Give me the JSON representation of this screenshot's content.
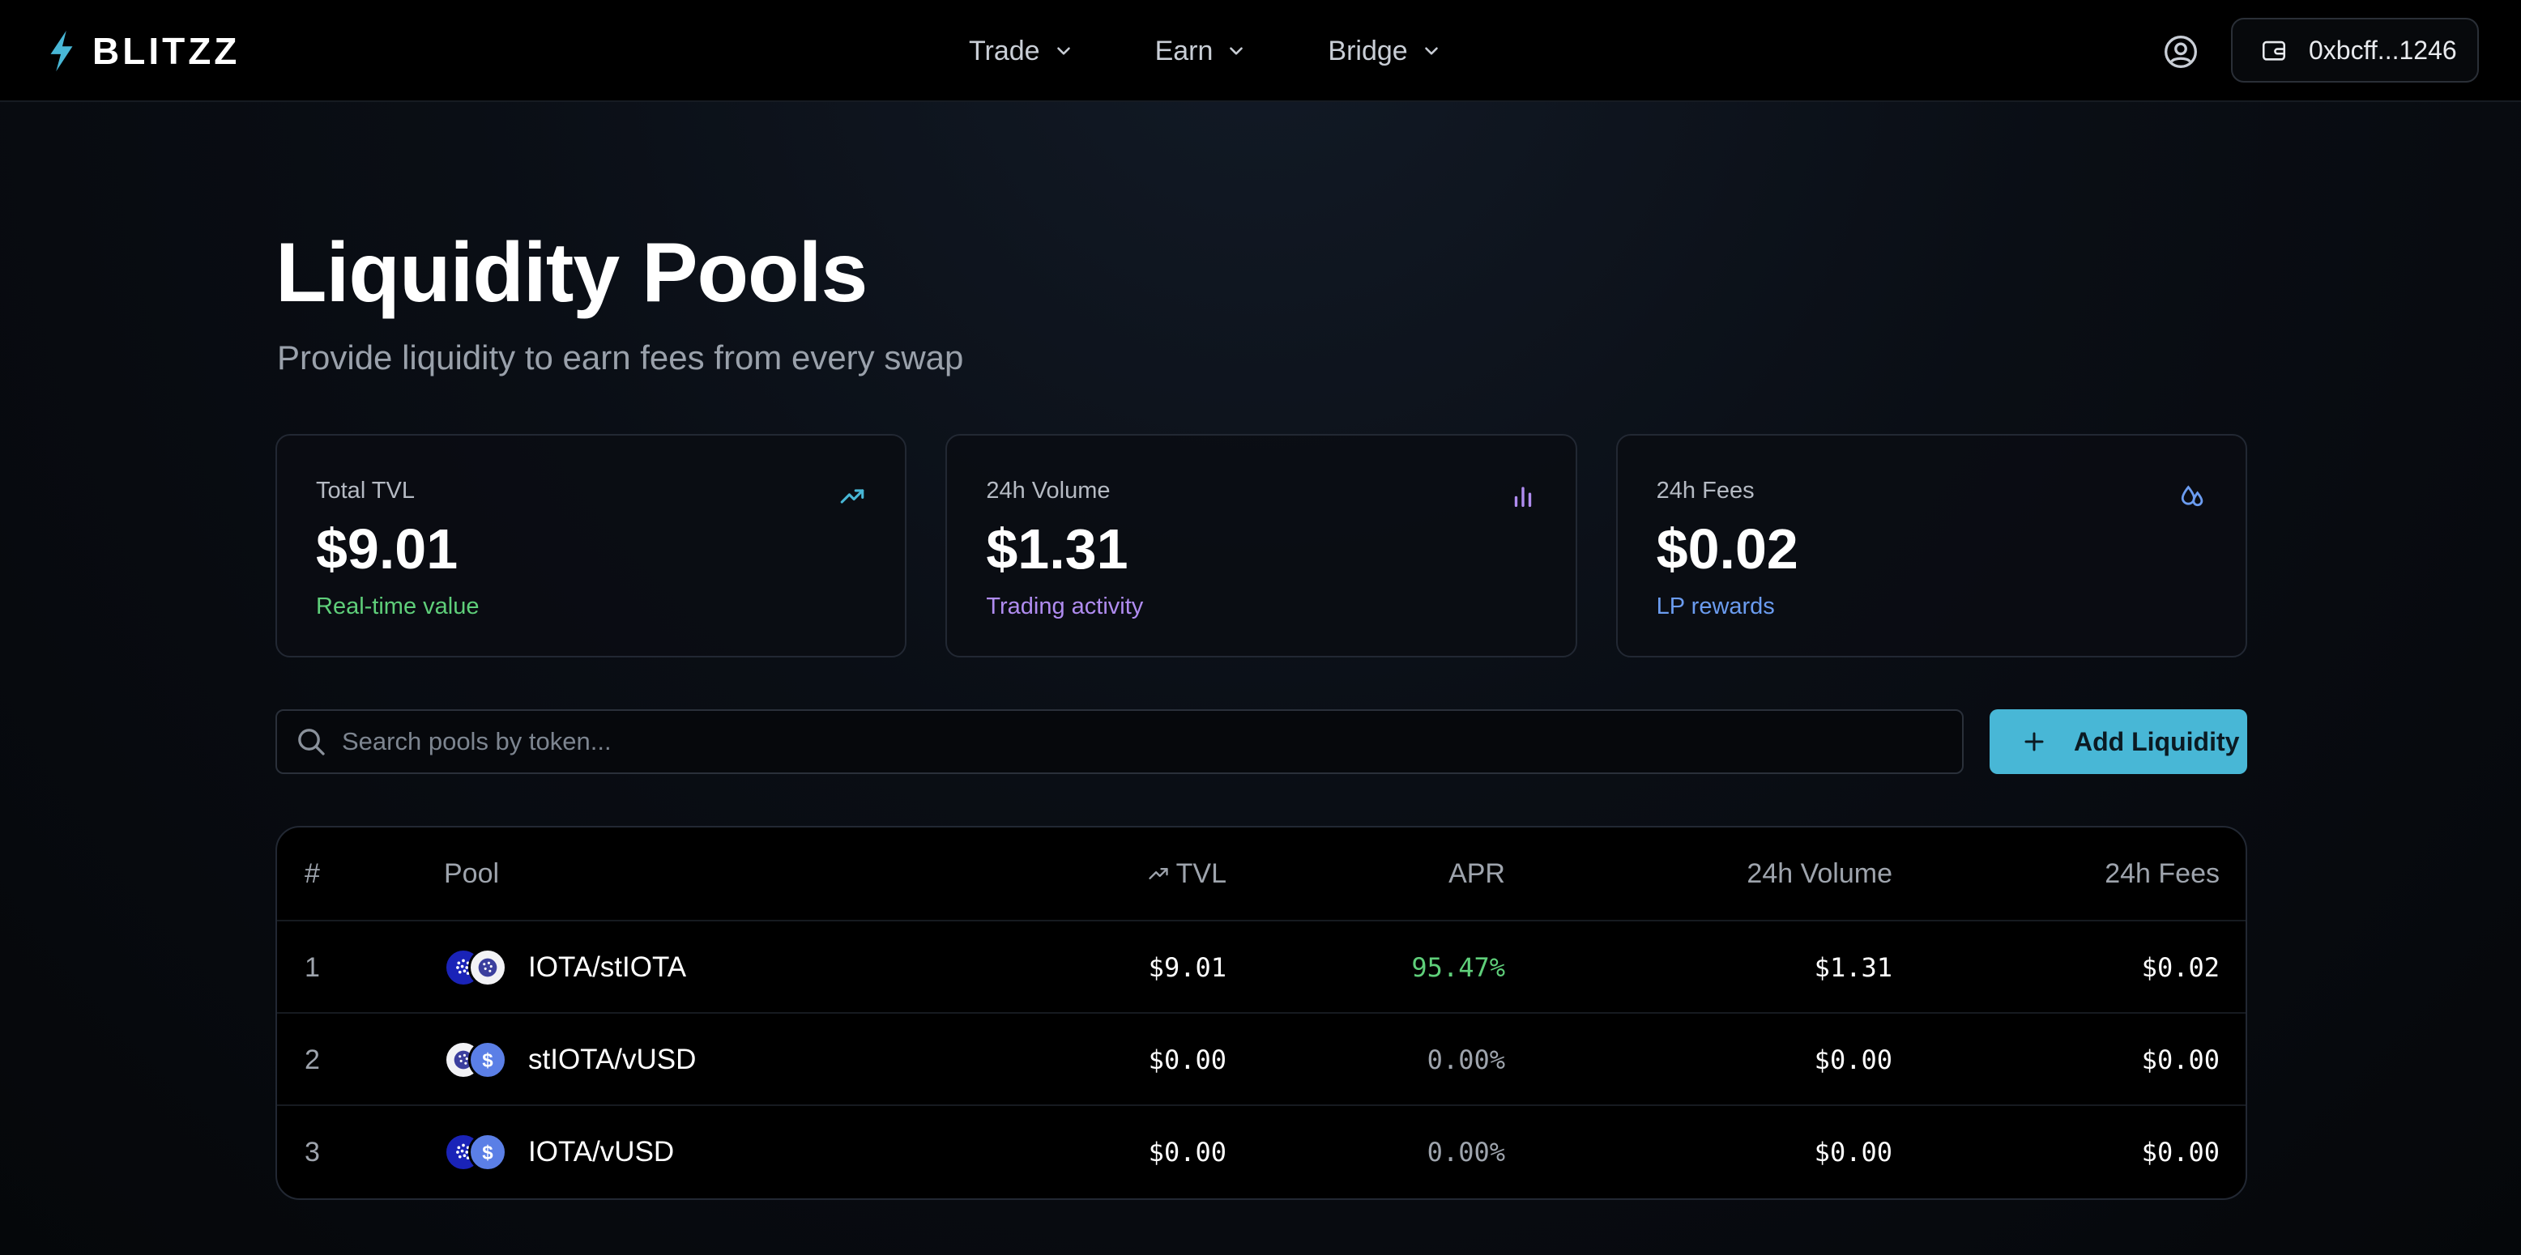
{
  "brand": {
    "name": "BLITZZ",
    "accent": "#48b7d6"
  },
  "nav": {
    "items": [
      {
        "label": "Trade"
      },
      {
        "label": "Earn"
      },
      {
        "label": "Bridge"
      }
    ]
  },
  "wallet": {
    "address": "0xbcff...1246"
  },
  "header": {
    "title": "Liquidity Pools",
    "subtitle": "Provide liquidity to earn fees from every swap"
  },
  "stats": [
    {
      "label": "Total TVL",
      "value": "$9.01",
      "note": "Real-time value",
      "note_color": "#5fcf7a",
      "icon": "trending-up-icon"
    },
    {
      "label": "24h Volume",
      "value": "$1.31",
      "note": "Trading activity",
      "note_color": "#b08cf0",
      "icon": "bar-chart-icon"
    },
    {
      "label": "24h Fees",
      "value": "$0.02",
      "note": "LP rewards",
      "note_color": "#6b9cf0",
      "icon": "droplets-icon"
    }
  ],
  "search": {
    "placeholder": "Search pools by token..."
  },
  "add_button": {
    "label": "Add Liquidity"
  },
  "table": {
    "headers": {
      "num": "#",
      "pool": "Pool",
      "tvl": "TVL",
      "apr": "APR",
      "volume": "24h Volume",
      "fees": "24h Fees"
    },
    "rows": [
      {
        "num": "1",
        "pool": "IOTA/stIOTA",
        "tvl": "$9.01",
        "apr": "95.47%",
        "volume": "$1.31",
        "fees": "$0.02",
        "apr_color": "#5fcf7a",
        "tokens": [
          "IOTA",
          "stIOTA"
        ]
      },
      {
        "num": "2",
        "pool": "stIOTA/vUSD",
        "tvl": "$0.00",
        "apr": "0.00%",
        "volume": "$0.00",
        "fees": "$0.00",
        "apr_color": "#9ea4ad",
        "tokens": [
          "stIOTA",
          "vUSD"
        ]
      },
      {
        "num": "3",
        "pool": "IOTA/vUSD",
        "tvl": "$0.00",
        "apr": "0.00%",
        "volume": "$0.00",
        "fees": "$0.00",
        "apr_color": "#9ea4ad",
        "tokens": [
          "IOTA",
          "vUSD"
        ]
      }
    ]
  }
}
